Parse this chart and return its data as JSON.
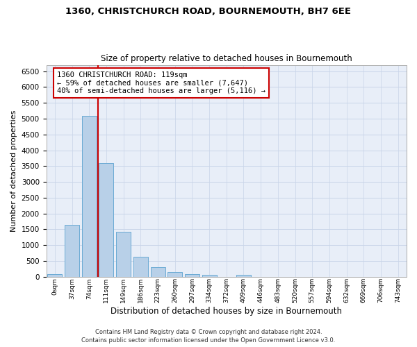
{
  "title1": "1360, CHRISTCHURCH ROAD, BOURNEMOUTH, BH7 6EE",
  "title2": "Size of property relative to detached houses in Bournemouth",
  "xlabel": "Distribution of detached houses by size in Bournemouth",
  "ylabel": "Number of detached properties",
  "footer1": "Contains HM Land Registry data © Crown copyright and database right 2024.",
  "footer2": "Contains public sector information licensed under the Open Government Licence v3.0.",
  "bar_labels": [
    "0sqm",
    "37sqm",
    "74sqm",
    "111sqm",
    "149sqm",
    "186sqm",
    "223sqm",
    "260sqm",
    "297sqm",
    "334sqm",
    "372sqm",
    "409sqm",
    "446sqm",
    "483sqm",
    "520sqm",
    "557sqm",
    "594sqm",
    "632sqm",
    "669sqm",
    "706sqm",
    "743sqm"
  ],
  "bar_values": [
    75,
    1640,
    5080,
    3590,
    1410,
    620,
    305,
    150,
    85,
    55,
    0,
    55,
    0,
    0,
    0,
    0,
    0,
    0,
    0,
    0,
    0
  ],
  "bar_color": "#b8d0e8",
  "bar_edge_color": "#6aaad4",
  "vline_x": 2.5,
  "annotation_text": "1360 CHRISTCHURCH ROAD: 119sqm\n← 59% of detached houses are smaller (7,647)\n40% of semi-detached houses are larger (5,116) →",
  "annotation_box_color": "#ffffff",
  "annotation_box_edge": "#cc0000",
  "vline_color": "#cc0000",
  "ylim": [
    0,
    6700
  ],
  "yticks": [
    0,
    500,
    1000,
    1500,
    2000,
    2500,
    3000,
    3500,
    4000,
    4500,
    5000,
    5500,
    6000,
    6500
  ],
  "grid_color": "#c8d4e8",
  "bg_color": "#e8eef8"
}
